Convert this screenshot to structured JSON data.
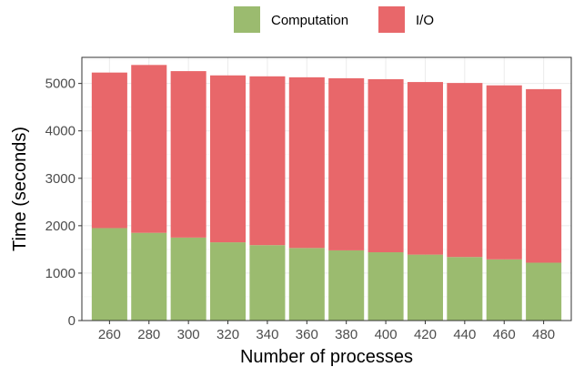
{
  "chart_data": {
    "type": "bar",
    "stacked": true,
    "title": "",
    "xlabel": "Number of processes",
    "ylabel": "Time (seconds)",
    "categories": [
      "260",
      "280",
      "300",
      "320",
      "340",
      "360",
      "380",
      "400",
      "420",
      "440",
      "460",
      "480"
    ],
    "series": [
      {
        "name": "Computation",
        "color": "#9bbb6f",
        "values": [
          1950,
          1850,
          1750,
          1650,
          1590,
          1530,
          1480,
          1440,
          1390,
          1340,
          1290,
          1220
        ]
      },
      {
        "name": "I/O",
        "color": "#e8676a",
        "values": [
          3280,
          3540,
          3510,
          3520,
          3560,
          3600,
          3630,
          3650,
          3640,
          3670,
          3670,
          3660
        ]
      }
    ],
    "ylim": [
      0,
      5550
    ],
    "yticks": [
      0,
      1000,
      2000,
      3000,
      4000,
      5000
    ],
    "grid": true,
    "legend_position": "top"
  }
}
